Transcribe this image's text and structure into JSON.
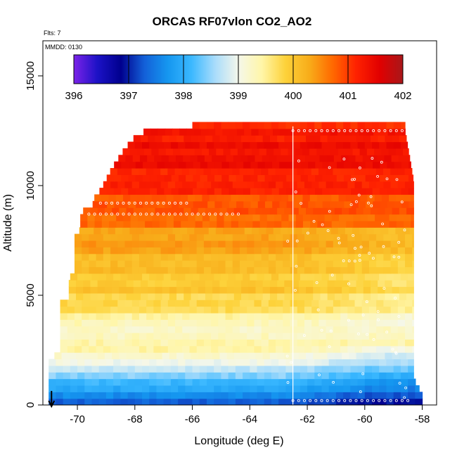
{
  "chart_data": {
    "type": "heatmap",
    "title": "ORCAS RF07vlon CO2_AO2",
    "flights_label": "Flts: 7",
    "date_label": "MMDD: 0130",
    "xlabel": "Longitude (deg E)",
    "ylabel": "Altitude (m)",
    "xlim": [
      -71.2,
      -57.5
    ],
    "ylim": [
      0,
      16600
    ],
    "x_ticks": [
      -70,
      -68,
      -66,
      -64,
      -62,
      -60,
      -58
    ],
    "y_ticks": [
      0,
      5000,
      10000,
      15000
    ],
    "grid": false,
    "colorbar": {
      "min": 396,
      "max": 402,
      "ticks": [
        396,
        397,
        398,
        399,
        400,
        401,
        402
      ],
      "colors": [
        "#7b22e8",
        "#1c12c6",
        "#00008e",
        "#1360d8",
        "#1597f0",
        "#3ab8ff",
        "#a8dcfb",
        "#f5f7ea",
        "#fff6a8",
        "#fdd23a",
        "#f8ad1a",
        "#ff6a00",
        "#ff2200",
        "#e20000",
        "#a8171a"
      ]
    },
    "data_left_edge": [
      [
        0,
        -71.0
      ],
      [
        2200,
        -71.0
      ],
      [
        2300,
        -70.6
      ],
      [
        4700,
        -70.6
      ],
      [
        4800,
        -70.3
      ],
      [
        5800,
        -70.3
      ],
      [
        6000,
        -70.1
      ],
      [
        7700,
        -70.1
      ],
      [
        8000,
        -69.9
      ],
      [
        8800,
        -69.9
      ],
      [
        9000,
        -69.5
      ],
      [
        9500,
        -69.4
      ],
      [
        9800,
        -69.2
      ],
      [
        10300,
        -69.0
      ],
      [
        10800,
        -68.8
      ],
      [
        11200,
        -68.6
      ],
      [
        11600,
        -68.4
      ],
      [
        12100,
        -68.1
      ],
      [
        12400,
        -67.8
      ],
      [
        12700,
        -67.2
      ],
      [
        12700,
        -66.0
      ]
    ],
    "data_right_edge": [
      [
        0,
        -58.0
      ],
      [
        500,
        -58.0
      ],
      [
        1200,
        -58.3
      ],
      [
        10200,
        -58.3
      ],
      [
        12500,
        -58.6
      ]
    ],
    "profile": [
      {
        "alt": 0,
        "value": 397.2
      },
      {
        "alt": 300,
        "value": 397.3
      },
      {
        "alt": 700,
        "value": 397.8
      },
      {
        "alt": 1100,
        "value": 398.2
      },
      {
        "alt": 1600,
        "value": 398.6
      },
      {
        "alt": 2000,
        "value": 399.0
      },
      {
        "alt": 2400,
        "value": 399.3
      },
      {
        "alt": 3000,
        "value": 399.3
      },
      {
        "alt": 3600,
        "value": 399.4
      },
      {
        "alt": 4200,
        "value": 399.6
      },
      {
        "alt": 5000,
        "value": 399.9
      },
      {
        "alt": 6000,
        "value": 400.1
      },
      {
        "alt": 7000,
        "value": 400.3
      },
      {
        "alt": 8000,
        "value": 400.5
      },
      {
        "alt": 9000,
        "value": 400.8
      },
      {
        "alt": 10000,
        "value": 401.2
      },
      {
        "alt": 11000,
        "value": 401.3
      },
      {
        "alt": 12000,
        "value": 401.3
      },
      {
        "alt": 12700,
        "value": 401.2
      }
    ],
    "sample_lines": [
      {
        "lon_start": -69.6,
        "lon_end": -64.2,
        "alt": 8700
      },
      {
        "lon_start": -69.2,
        "lon_end": -66.0,
        "alt": 9200
      },
      {
        "lon_start": -62.5,
        "lon_end": -58.4,
        "alt": 12500
      },
      {
        "lon_start": -62.5,
        "lon_end": -58.4,
        "alt": 200
      }
    ],
    "vertical_line_lon": -62.5,
    "arrow_lon": -70.9
  }
}
